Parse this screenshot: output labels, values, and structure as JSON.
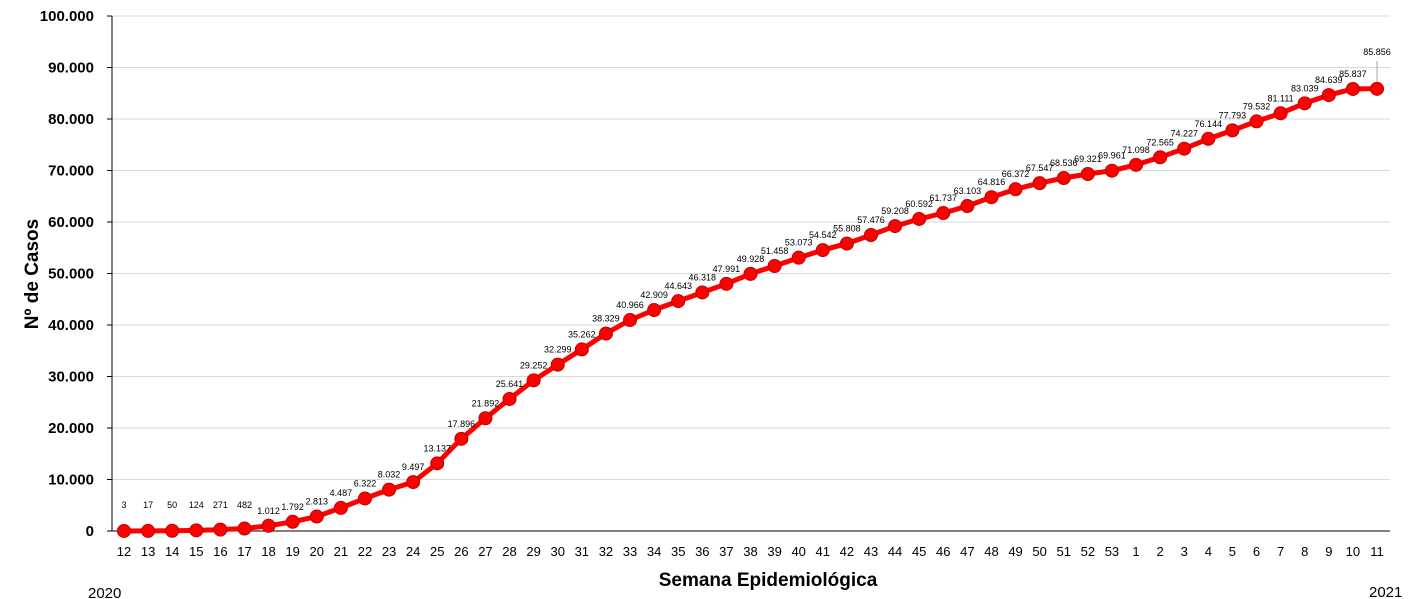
{
  "chart_data": {
    "type": "line",
    "title": "",
    "xlabel": "Semana Epidemiológica",
    "ylabel": "Nº de Casos",
    "ylim": [
      0,
      100000
    ],
    "yticks": [
      "0",
      "10.000",
      "20.000",
      "30.000",
      "40.000",
      "50.000",
      "60.000",
      "70.000",
      "80.000",
      "90.000",
      "100.000"
    ],
    "grid": true,
    "year_start": "2020",
    "year_end": "2021",
    "line_color": "#ff0000",
    "marker_color": "#ff0000",
    "grid_color": "#d9d9d9",
    "categories": [
      "12",
      "13",
      "14",
      "15",
      "16",
      "17",
      "18",
      "19",
      "20",
      "21",
      "22",
      "23",
      "24",
      "25",
      "26",
      "27",
      "28",
      "29",
      "30",
      "31",
      "32",
      "33",
      "34",
      "35",
      "36",
      "37",
      "38",
      "39",
      "40",
      "41",
      "42",
      "43",
      "44",
      "45",
      "46",
      "47",
      "48",
      "49",
      "50",
      "51",
      "52",
      "53",
      "1",
      "2",
      "3",
      "4",
      "5",
      "6",
      "7",
      "8",
      "9",
      "10",
      "11"
    ],
    "series": [
      {
        "values": [
          3,
          17,
          50,
          124,
          271,
          482,
          1012,
          1792,
          2813,
          4487,
          6322,
          8032,
          9497,
          13137,
          17896,
          21892,
          25641,
          29252,
          32299,
          35262,
          38329,
          40966,
          42909,
          44643,
          46318,
          47991,
          49928,
          51458,
          53073,
          54542,
          55808,
          57476,
          59208,
          60592,
          61737,
          63103,
          64816,
          66372,
          67547,
          68536,
          69321,
          69961,
          71098,
          72565,
          74227,
          76144,
          77793,
          79532,
          81111,
          83039,
          84639,
          85837,
          85856
        ],
        "labels": [
          "3",
          "17",
          "50",
          "124",
          "271",
          "482",
          "1.012",
          "1.792",
          "2.813",
          "4.487",
          "6.322",
          "8.032",
          "9.497",
          "13.137",
          "17.896",
          "21.892",
          "25.641",
          "29.252",
          "32.299",
          "35.262",
          "38.329",
          "40.966",
          "42.909",
          "44.643",
          "46.318",
          "47.991",
          "49.928",
          "51.458",
          "53.073",
          "54.542",
          "55.808",
          "57.476",
          "59.208",
          "60.592",
          "61.737",
          "63.103",
          "64.816",
          "66.372",
          "67.547",
          "68.536",
          "69.321",
          "69.961",
          "71.098",
          "72.565",
          "74.227",
          "76.144",
          "77.793",
          "79.532",
          "81.111",
          "83.039",
          "84.639",
          "85.837",
          "85.856"
        ]
      }
    ]
  }
}
